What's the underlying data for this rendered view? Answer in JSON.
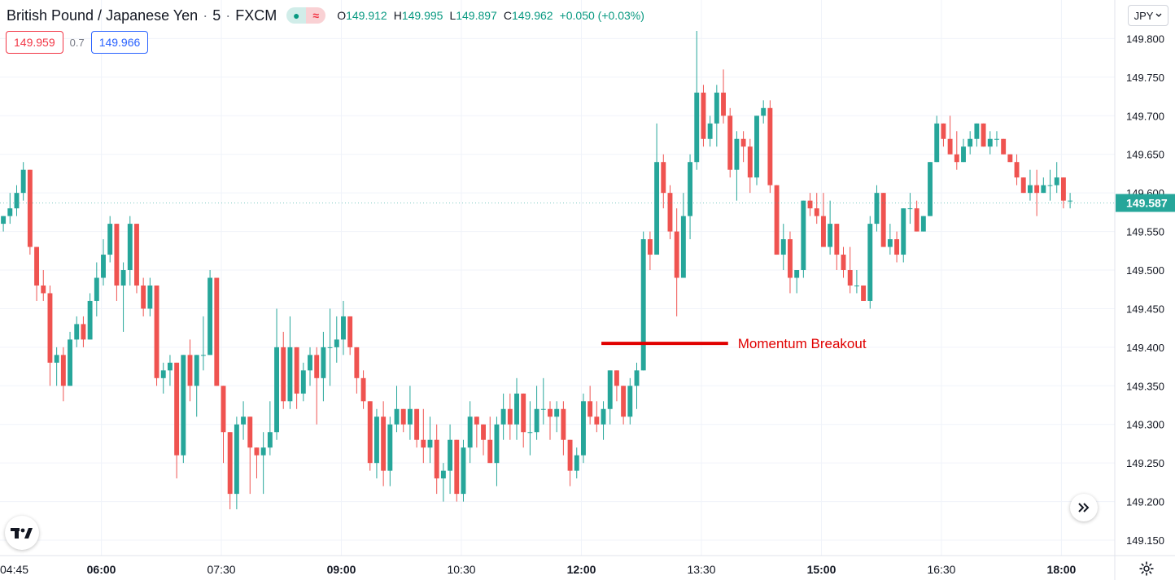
{
  "header": {
    "symbol_title": "British Pound / Japanese Yen",
    "interval": "5",
    "exchange": "FXCM",
    "ohlc": {
      "open_label": "O",
      "open": "149.912",
      "high_label": "H",
      "high": "149.995",
      "low_label": "L",
      "low": "149.897",
      "close_label": "C",
      "close": "149.962",
      "change": "+0.050 (+0.03%)"
    }
  },
  "trade": {
    "sell_price": "149.959",
    "spread": "0.7",
    "buy_price": "149.966"
  },
  "currency_selector": {
    "label": "JPY"
  },
  "icons": {
    "logo": "tradingview-logo-icon",
    "scroll": "scroll-forward-icon",
    "settings": "gear-icon"
  },
  "colors": {
    "up": "#26a69a",
    "down": "#ef5350",
    "annotation": "#e00000"
  },
  "chart_data": {
    "type": "candlestick",
    "symbol": "GBPJPY",
    "interval_minutes": 5,
    "y_axis": {
      "range": [
        149.13,
        149.85
      ],
      "ticks": [
        "149.150",
        "149.200",
        "149.250",
        "149.300",
        "149.350",
        "149.400",
        "149.450",
        "149.500",
        "149.550",
        "149.600",
        "149.650",
        "149.700",
        "149.750",
        "149.800"
      ],
      "side": "right"
    },
    "x_axis": {
      "time_range": [
        "04:44",
        "18:40"
      ],
      "ticks": [
        {
          "time": "04:30",
          "label": "04:45",
          "clipped": true
        },
        {
          "time": "06:00",
          "label": "06:00",
          "bold": true
        },
        {
          "time": "07:30",
          "label": "07:30"
        },
        {
          "time": "09:00",
          "label": "09:00",
          "bold": true
        },
        {
          "time": "10:30",
          "label": "10:30"
        },
        {
          "time": "12:00",
          "label": "12:00",
          "bold": true
        },
        {
          "time": "13:30",
          "label": "13:30"
        },
        {
          "time": "15:00",
          "label": "15:00",
          "bold": true
        },
        {
          "time": "16:30",
          "label": "16:30"
        },
        {
          "time": "18:00",
          "label": "18:00",
          "bold": true
        }
      ]
    },
    "grid": true,
    "last_price": "149.587",
    "annotation": {
      "label": "Momentum Breakout",
      "price": 149.405,
      "time_start": "12:15",
      "time_end": "13:50"
    },
    "candles_ohlc": [
      [
        149.56,
        149.57,
        149.55,
        149.57
      ],
      [
        149.57,
        149.6,
        149.56,
        149.58
      ],
      [
        149.58,
        149.61,
        149.57,
        149.6
      ],
      [
        149.6,
        149.64,
        149.59,
        149.63
      ],
      [
        149.63,
        149.63,
        149.52,
        149.53
      ],
      [
        149.53,
        149.53,
        149.46,
        149.48
      ],
      [
        149.48,
        149.5,
        149.46,
        149.47
      ],
      [
        149.47,
        149.48,
        149.35,
        149.38
      ],
      [
        149.38,
        149.4,
        149.35,
        149.39
      ],
      [
        149.39,
        149.4,
        149.33,
        149.35
      ],
      [
        149.35,
        149.42,
        149.35,
        149.41
      ],
      [
        149.41,
        149.44,
        149.4,
        149.43
      ],
      [
        149.43,
        149.44,
        149.4,
        149.41
      ],
      [
        149.41,
        149.47,
        149.41,
        149.46
      ],
      [
        149.46,
        149.51,
        149.44,
        149.49
      ],
      [
        149.49,
        149.54,
        149.48,
        149.52
      ],
      [
        149.52,
        149.57,
        149.51,
        149.56
      ],
      [
        149.56,
        149.56,
        149.46,
        149.48
      ],
      [
        149.48,
        149.51,
        149.42,
        149.5
      ],
      [
        149.5,
        149.57,
        149.48,
        149.56
      ],
      [
        149.56,
        149.56,
        149.47,
        149.48
      ],
      [
        149.48,
        149.49,
        149.44,
        149.45
      ],
      [
        149.45,
        149.49,
        149.44,
        149.48
      ],
      [
        149.48,
        149.48,
        149.35,
        149.36
      ],
      [
        149.36,
        149.38,
        149.34,
        149.37
      ],
      [
        149.37,
        149.39,
        149.35,
        149.38
      ],
      [
        149.38,
        149.38,
        149.23,
        149.26
      ],
      [
        149.26,
        149.39,
        149.25,
        149.39
      ],
      [
        149.39,
        149.41,
        149.33,
        149.35
      ],
      [
        149.35,
        149.39,
        149.31,
        149.39
      ],
      [
        149.39,
        149.44,
        149.37,
        149.39
      ],
      [
        149.39,
        149.5,
        149.39,
        149.49
      ],
      [
        149.49,
        149.49,
        149.35,
        149.35
      ],
      [
        149.35,
        149.35,
        149.25,
        149.29
      ],
      [
        149.29,
        149.29,
        149.19,
        149.21
      ],
      [
        149.21,
        149.31,
        149.19,
        149.3
      ],
      [
        149.3,
        149.33,
        149.28,
        149.31
      ],
      [
        149.31,
        149.31,
        149.21,
        149.27
      ],
      [
        149.27,
        149.27,
        149.23,
        149.26
      ],
      [
        149.26,
        149.29,
        149.21,
        149.27
      ],
      [
        149.27,
        149.33,
        149.26,
        149.29
      ],
      [
        149.29,
        149.45,
        149.28,
        149.4
      ],
      [
        149.4,
        149.42,
        149.32,
        149.33
      ],
      [
        149.33,
        149.44,
        149.32,
        149.4
      ],
      [
        149.4,
        149.4,
        149.32,
        149.34
      ],
      [
        149.34,
        149.38,
        149.33,
        149.37
      ],
      [
        149.37,
        149.4,
        149.35,
        149.39
      ],
      [
        149.39,
        149.4,
        149.3,
        149.36
      ],
      [
        149.36,
        149.42,
        149.33,
        149.4
      ],
      [
        149.4,
        149.45,
        149.35,
        149.4
      ],
      [
        149.4,
        149.44,
        149.38,
        149.41
      ],
      [
        149.41,
        149.46,
        149.39,
        149.44
      ],
      [
        149.44,
        149.44,
        149.39,
        149.4
      ],
      [
        149.4,
        149.4,
        149.34,
        149.36
      ],
      [
        149.36,
        149.37,
        149.32,
        149.33
      ],
      [
        149.33,
        149.33,
        149.24,
        149.25
      ],
      [
        149.25,
        149.32,
        149.23,
        149.31
      ],
      [
        149.31,
        149.33,
        149.22,
        149.24
      ],
      [
        149.24,
        149.31,
        149.22,
        149.3
      ],
      [
        149.3,
        149.35,
        149.29,
        149.32
      ],
      [
        149.32,
        149.32,
        149.29,
        149.3
      ],
      [
        149.3,
        149.35,
        149.28,
        149.32
      ],
      [
        149.32,
        149.32,
        149.27,
        149.28
      ],
      [
        149.28,
        149.32,
        149.25,
        149.27
      ],
      [
        149.27,
        149.31,
        149.25,
        149.28
      ],
      [
        149.28,
        149.3,
        149.21,
        149.23
      ],
      [
        149.23,
        149.25,
        149.2,
        149.24
      ],
      [
        149.24,
        149.3,
        149.21,
        149.28
      ],
      [
        149.28,
        149.28,
        149.2,
        149.21
      ],
      [
        149.21,
        149.28,
        149.2,
        149.27
      ],
      [
        149.27,
        149.33,
        149.25,
        149.31
      ],
      [
        149.31,
        149.31,
        149.27,
        149.3
      ],
      [
        149.3,
        149.3,
        149.26,
        149.28
      ],
      [
        149.28,
        149.31,
        149.25,
        149.25
      ],
      [
        149.25,
        149.31,
        149.22,
        149.3
      ],
      [
        149.3,
        149.34,
        149.28,
        149.32
      ],
      [
        149.32,
        149.34,
        149.28,
        149.3
      ],
      [
        149.3,
        149.36,
        149.28,
        149.34
      ],
      [
        149.34,
        149.34,
        149.27,
        149.29
      ],
      [
        149.29,
        149.33,
        149.26,
        149.29
      ],
      [
        149.29,
        149.35,
        149.28,
        149.32
      ],
      [
        149.32,
        149.36,
        149.3,
        149.32
      ],
      [
        149.32,
        149.33,
        149.28,
        149.31
      ],
      [
        149.31,
        149.33,
        149.29,
        149.32
      ],
      [
        149.32,
        149.33,
        149.26,
        149.28
      ],
      [
        149.28,
        149.28,
        149.22,
        149.24
      ],
      [
        149.24,
        149.27,
        149.23,
        149.26
      ],
      [
        149.26,
        149.34,
        149.25,
        149.33
      ],
      [
        149.33,
        149.35,
        149.3,
        149.31
      ],
      [
        149.31,
        149.33,
        149.29,
        149.3
      ],
      [
        149.3,
        149.33,
        149.28,
        149.32
      ],
      [
        149.32,
        149.37,
        149.3,
        149.37
      ],
      [
        149.37,
        149.37,
        149.33,
        149.35
      ],
      [
        149.35,
        149.35,
        149.3,
        149.31
      ],
      [
        149.31,
        149.36,
        149.3,
        149.35
      ],
      [
        149.35,
        149.38,
        149.32,
        149.37
      ],
      [
        149.37,
        149.55,
        149.37,
        149.54
      ],
      [
        149.54,
        149.55,
        149.5,
        149.52
      ],
      [
        149.52,
        149.69,
        149.52,
        149.64
      ],
      [
        149.64,
        149.65,
        149.58,
        149.6
      ],
      [
        149.6,
        149.61,
        149.54,
        149.55
      ],
      [
        149.55,
        149.58,
        149.44,
        149.49
      ],
      [
        149.49,
        149.6,
        149.49,
        149.57
      ],
      [
        149.57,
        149.65,
        149.54,
        149.64
      ],
      [
        149.64,
        149.81,
        149.63,
        149.73
      ],
      [
        149.73,
        149.74,
        149.66,
        149.67
      ],
      [
        149.67,
        149.7,
        149.66,
        149.69
      ],
      [
        149.69,
        149.74,
        149.66,
        149.73
      ],
      [
        149.73,
        149.76,
        149.69,
        149.7
      ],
      [
        149.7,
        149.71,
        149.62,
        149.63
      ],
      [
        149.63,
        149.68,
        149.59,
        149.67
      ],
      [
        149.67,
        149.68,
        149.64,
        149.66
      ],
      [
        149.66,
        149.67,
        149.6,
        149.62
      ],
      [
        149.62,
        149.7,
        149.61,
        149.7
      ],
      [
        149.7,
        149.72,
        149.69,
        149.71
      ],
      [
        149.71,
        149.72,
        149.6,
        149.61
      ],
      [
        149.61,
        149.61,
        149.52,
        149.52
      ],
      [
        149.52,
        149.56,
        149.5,
        149.54
      ],
      [
        149.54,
        149.55,
        149.47,
        149.49
      ],
      [
        149.49,
        149.5,
        149.47,
        149.5
      ],
      [
        149.5,
        149.59,
        149.49,
        149.59
      ],
      [
        149.59,
        149.6,
        149.57,
        149.58
      ],
      [
        149.58,
        149.6,
        149.56,
        149.57
      ],
      [
        149.57,
        149.6,
        149.53,
        149.53
      ],
      [
        149.53,
        149.59,
        149.52,
        149.56
      ],
      [
        149.56,
        149.56,
        149.5,
        149.52
      ],
      [
        149.52,
        149.53,
        149.49,
        149.5
      ],
      [
        149.5,
        149.53,
        149.47,
        149.48
      ],
      [
        149.48,
        149.5,
        149.47,
        149.48
      ],
      [
        149.48,
        149.48,
        149.46,
        149.46
      ],
      [
        149.46,
        149.57,
        149.45,
        149.56
      ],
      [
        149.56,
        149.61,
        149.55,
        149.6
      ],
      [
        149.6,
        149.6,
        149.53,
        149.53
      ],
      [
        149.53,
        149.56,
        149.52,
        149.54
      ],
      [
        149.54,
        149.55,
        149.51,
        149.52
      ],
      [
        149.52,
        149.58,
        149.51,
        149.58
      ],
      [
        149.58,
        149.6,
        149.56,
        149.58
      ],
      [
        149.58,
        149.59,
        149.55,
        149.55
      ],
      [
        149.55,
        149.57,
        149.55,
        149.57
      ],
      [
        149.57,
        149.64,
        149.57,
        149.64
      ],
      [
        149.64,
        149.7,
        149.64,
        149.69
      ],
      [
        149.69,
        149.69,
        149.66,
        149.67
      ],
      [
        149.67,
        149.7,
        149.65,
        149.65
      ],
      [
        149.65,
        149.68,
        149.63,
        149.64
      ],
      [
        149.64,
        149.67,
        149.64,
        149.66
      ],
      [
        149.66,
        149.68,
        149.65,
        149.67
      ],
      [
        149.67,
        149.69,
        149.66,
        149.69
      ],
      [
        149.69,
        149.69,
        149.66,
        149.66
      ],
      [
        149.66,
        149.68,
        149.65,
        149.67
      ],
      [
        149.67,
        149.68,
        149.66,
        149.67
      ],
      [
        149.67,
        149.67,
        149.65,
        149.65
      ],
      [
        149.65,
        149.65,
        149.64,
        149.64
      ],
      [
        149.64,
        149.65,
        149.61,
        149.62
      ],
      [
        149.62,
        149.62,
        149.6,
        149.6
      ],
      [
        149.6,
        149.63,
        149.59,
        149.61
      ],
      [
        149.61,
        149.63,
        149.57,
        149.6
      ],
      [
        149.6,
        149.62,
        149.6,
        149.61
      ],
      [
        149.61,
        149.63,
        149.59,
        149.61
      ],
      [
        149.61,
        149.64,
        149.6,
        149.62
      ],
      [
        149.62,
        149.62,
        149.58,
        149.59
      ],
      [
        149.59,
        149.6,
        149.58,
        149.59
      ]
    ]
  }
}
